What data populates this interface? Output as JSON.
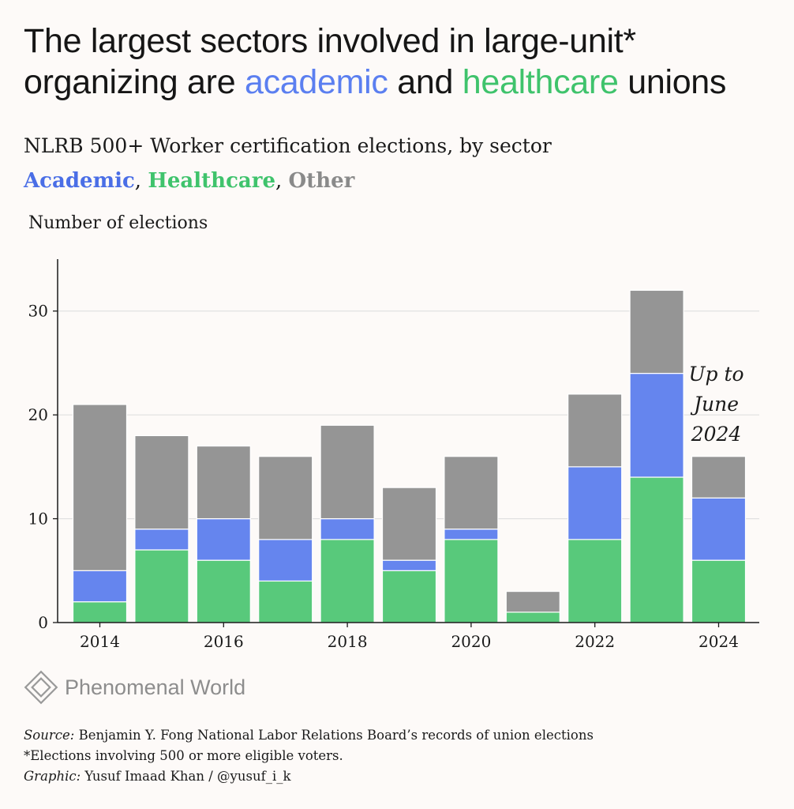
{
  "title": {
    "line1": "The largest sectors involved in large-unit*",
    "line2_prefix": "organizing are ",
    "academic_word": "academic",
    "middle": " and ",
    "health_word": "healthcare",
    "suffix": " unions"
  },
  "subtitle": "NLRB 500+ Worker certification elections, by sector",
  "legend": {
    "academic": "Academic",
    "healthcare": "Healthcare",
    "other": "Other",
    "separator": ", "
  },
  "colors": {
    "academic": "#6585ee",
    "healthcare": "#58c97b",
    "other": "#959595"
  },
  "chart_data": {
    "type": "bar",
    "stacked": true,
    "categories": [
      "2014",
      "2015",
      "2016",
      "2017",
      "2018",
      "2019",
      "2020",
      "2021",
      "2022",
      "2023",
      "2024"
    ],
    "series": [
      {
        "name": "Healthcare",
        "values": [
          2,
          7,
          6,
          4,
          8,
          5,
          8,
          1,
          8,
          14,
          6
        ]
      },
      {
        "name": "Academic",
        "values": [
          3,
          2,
          4,
          4,
          2,
          1,
          1,
          0,
          7,
          10,
          6
        ]
      },
      {
        "name": "Other",
        "values": [
          16,
          9,
          7,
          8,
          9,
          7,
          7,
          2,
          7,
          8,
          4
        ]
      }
    ],
    "ylabel": "Number of elections",
    "ylim": [
      0,
      35
    ],
    "yticks": [
      0,
      10,
      20,
      30
    ],
    "xtick_labels": [
      "2014",
      "2016",
      "2018",
      "2020",
      "2022",
      "2024"
    ],
    "grid": "horizontal",
    "annotation": [
      "Up to",
      "June",
      "2024"
    ]
  },
  "brand": "Phenomenal World",
  "footer": {
    "source_lead": "Source:",
    "source_text": " Benjamin Y. Fong National Labor Relations Board’s records of union elections",
    "note": "*Elections involving 500 or more eligible voters.",
    "graphic_lead": "Graphic:",
    "graphic_text": " Yusuf Imaad Khan / @yusuf_i_k"
  }
}
